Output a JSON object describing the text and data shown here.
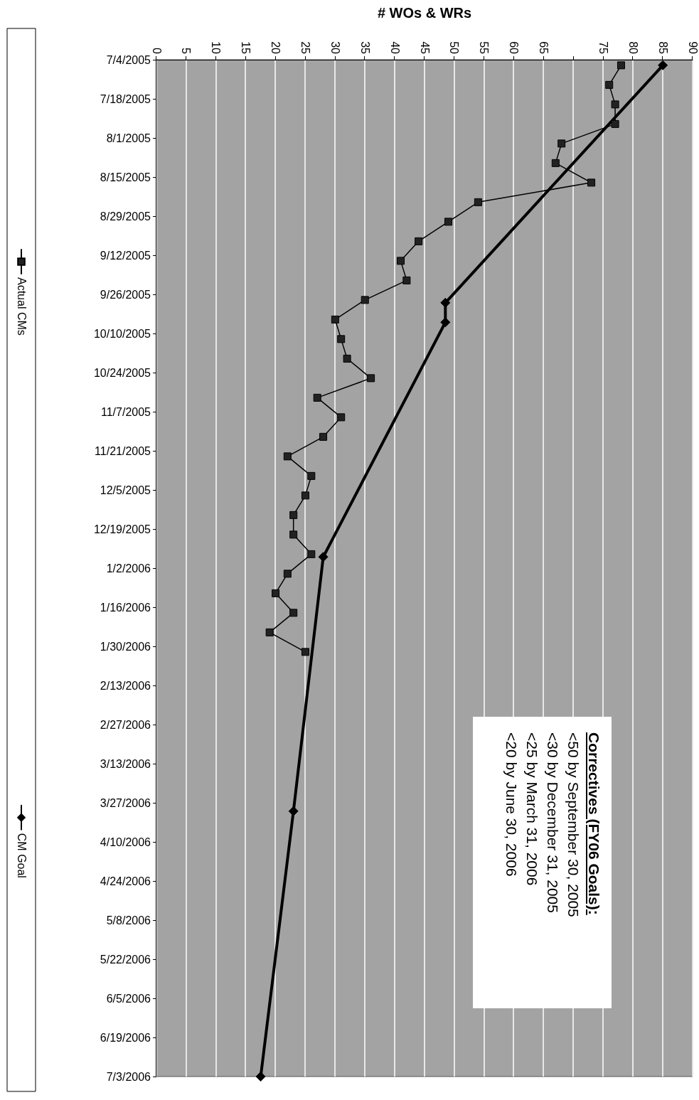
{
  "chart_data": {
    "type": "line",
    "orientation": "horizontal",
    "xlabel": "# WOs & WRs",
    "annotations": [
      "Correctives (FY06 Goals):",
      "<50 by September 30, 2005",
      "<30 by December 31, 2005",
      "<25 by March 31, 2006",
      "<20 by June 30, 2006"
    ],
    "ylim": [
      "2006-07-03",
      "2005-07-04"
    ],
    "yticks": [
      {
        "value": "2005-07-04",
        "label": "7/4/2005"
      },
      {
        "value": "2005-07-18",
        "label": "7/18/2005"
      },
      {
        "value": "2005-08-01",
        "label": "8/1/2005"
      },
      {
        "value": "2005-08-15",
        "label": "8/15/2005"
      },
      {
        "value": "2005-08-29",
        "label": "8/29/2005"
      },
      {
        "value": "2005-09-12",
        "label": "9/12/2005"
      },
      {
        "value": "2005-09-26",
        "label": "9/26/2005"
      },
      {
        "value": "2005-10-10",
        "label": "10/10/2005"
      },
      {
        "value": "2005-10-24",
        "label": "10/24/2005"
      },
      {
        "value": "2005-11-07",
        "label": "11/7/2005"
      },
      {
        "value": "2005-11-21",
        "label": "11/21/2005"
      },
      {
        "value": "2005-12-05",
        "label": "12/5/2005"
      },
      {
        "value": "2005-12-19",
        "label": "12/19/2005"
      },
      {
        "value": "2006-01-02",
        "label": "1/2/2006"
      },
      {
        "value": "2006-01-16",
        "label": "1/16/2006"
      },
      {
        "value": "2006-01-30",
        "label": "1/30/2006"
      },
      {
        "value": "2006-02-13",
        "label": "2/13/2006"
      },
      {
        "value": "2006-02-27",
        "label": "2/27/2006"
      },
      {
        "value": "2006-03-13",
        "label": "3/13/2006"
      },
      {
        "value": "2006-03-27",
        "label": "3/27/2006"
      },
      {
        "value": "2006-04-10",
        "label": "4/10/2006"
      },
      {
        "value": "2006-04-24",
        "label": "4/24/2006"
      },
      {
        "value": "2006-05-08",
        "label": "5/8/2006"
      },
      {
        "value": "2006-05-22",
        "label": "5/22/2006"
      },
      {
        "value": "2006-06-05",
        "label": "6/5/2006"
      },
      {
        "value": "2006-06-19",
        "label": "6/19/2006"
      },
      {
        "value": "2006-07-03",
        "label": "7/3/2006"
      }
    ],
    "xlim": [
      0,
      90
    ],
    "xticks": [
      0,
      5,
      10,
      15,
      20,
      25,
      30,
      35,
      40,
      45,
      50,
      55,
      60,
      65,
      {
        "value": 70,
        "label": null
      },
      75,
      80,
      85,
      90
    ],
    "grid": "x",
    "legend": "left",
    "line_style": "solid",
    "series": [
      {
        "name": "Actual CMs",
        "color": "#000000",
        "marker": "square",
        "x": [
          "2005-07-06",
          "2005-07-13",
          "2005-07-20",
          "2005-07-27",
          "2005-08-03",
          "2005-08-10",
          "2005-08-17",
          "2005-08-24",
          "2005-08-31",
          "2005-09-07",
          "2005-09-14",
          "2005-09-21",
          "2005-09-28",
          "2005-10-05",
          "2005-10-12",
          "2005-10-19",
          "2005-10-26",
          "2005-11-02",
          "2005-11-09",
          "2005-11-16",
          "2005-11-23",
          "2005-11-30",
          "2005-12-07",
          "2005-12-14",
          "2005-12-21",
          "2005-12-28",
          "2006-01-04",
          "2006-01-11",
          "2006-01-18",
          "2006-01-25",
          "2006-02-01"
        ],
        "values": [
          78,
          76,
          77,
          77,
          68,
          67,
          73,
          54,
          49,
          44,
          41,
          42,
          35,
          30,
          31,
          32,
          36,
          27,
          31,
          28,
          22,
          26,
          25,
          23,
          23,
          26,
          22,
          20,
          23,
          19,
          25
        ]
      },
      {
        "name": "CM Goal",
        "color": "#000000",
        "marker": "diamond",
        "x": [
          "2005-07-06",
          "2005-09-29",
          "2005-10-06",
          "2005-12-29",
          "2006-03-30",
          "2006-07-03"
        ],
        "values": [
          85,
          48.5,
          48.5,
          28,
          23,
          17.5
        ]
      }
    ]
  }
}
